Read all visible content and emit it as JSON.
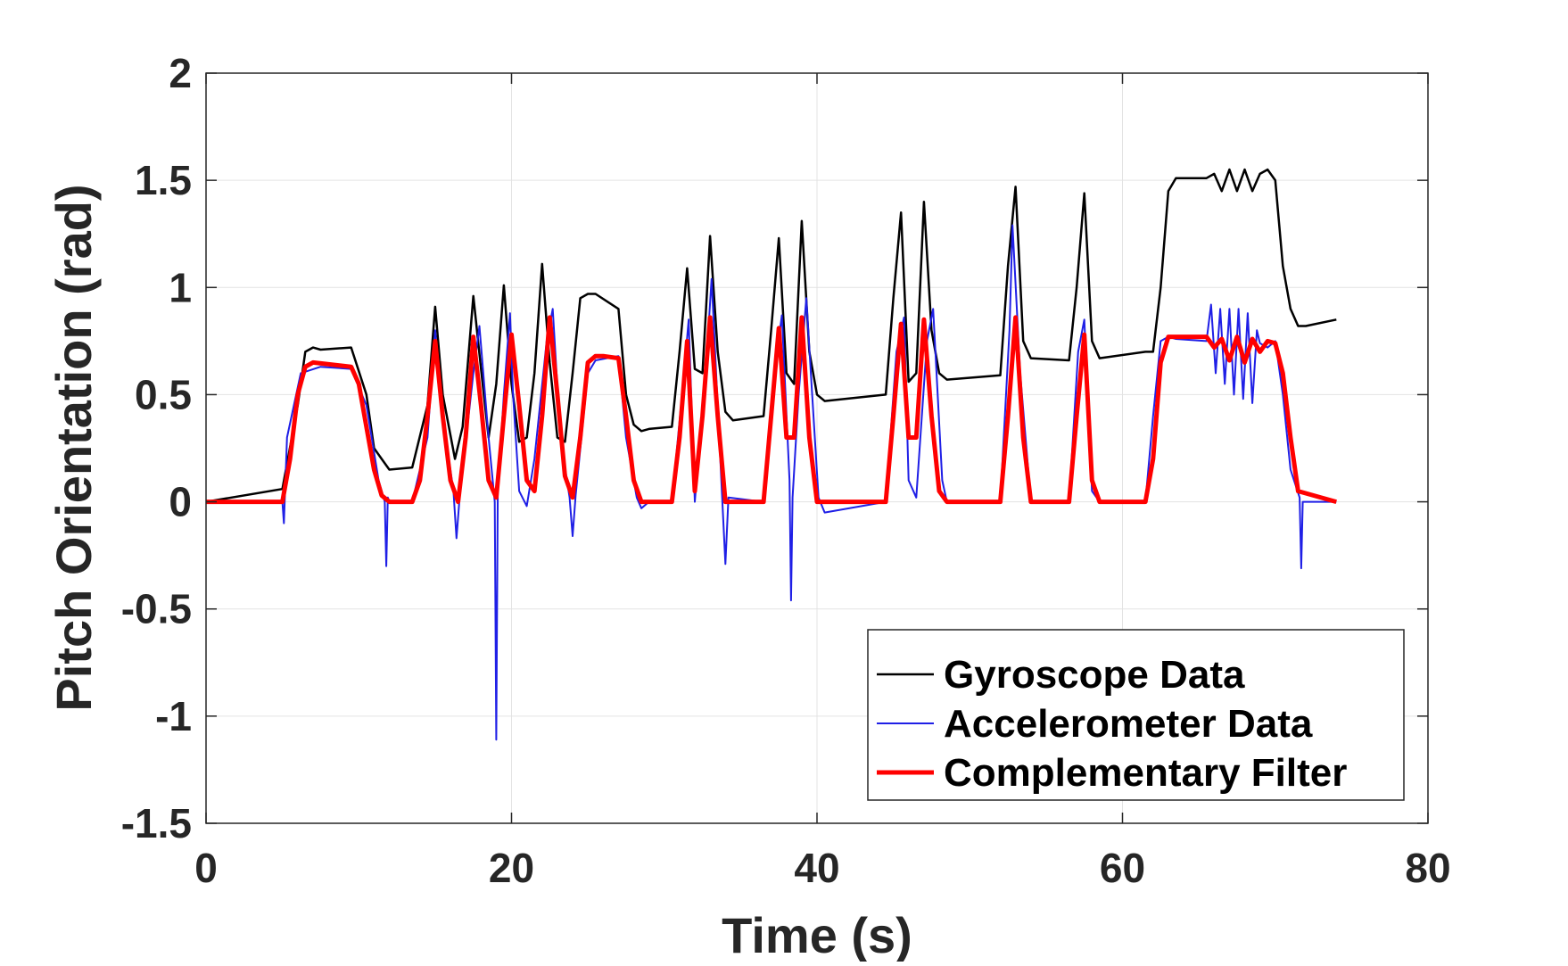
{
  "chart_data": {
    "type": "line",
    "title": "",
    "xlabel": "Time (s)",
    "ylabel": "Pitch Orientation (rad)",
    "xlim": [
      0,
      80
    ],
    "ylim": [
      -1.5,
      2
    ],
    "xticks": [
      0,
      20,
      40,
      60,
      80
    ],
    "xtick_labels": [
      "0",
      "20",
      "40",
      "60",
      "80"
    ],
    "yticks": [
      -1.5,
      -1,
      -0.5,
      0,
      0.5,
      1,
      1.5,
      2
    ],
    "ytick_labels": [
      "-1.5",
      "-1",
      "-0.5",
      "0",
      "0.5",
      "1",
      "1.5",
      "2"
    ],
    "grid": true,
    "legend_position": "bottom-right",
    "series": [
      {
        "name": "Gyroscope Data",
        "color": "#000000",
        "x": [
          0,
          5,
          6,
          6.5,
          7,
          7.5,
          9.5,
          10.5,
          11,
          11.5,
          12,
          13.5,
          14.5,
          15,
          15.5,
          16.3,
          16.8,
          17.5,
          18,
          18.5,
          19,
          19.5,
          20,
          20.5,
          21,
          21.5,
          22,
          22.5,
          23,
          23.5,
          24,
          24.5,
          25,
          25.5,
          27,
          27.5,
          28,
          28.5,
          29,
          30.5,
          31,
          31.5,
          32,
          32.5,
          33,
          33.5,
          34,
          34.5,
          36.5,
          37,
          37.5,
          38,
          38.5,
          39,
          39.5,
          40,
          40.5,
          44.5,
          45,
          45.5,
          46,
          46.5,
          47,
          47.5,
          48,
          48.5,
          52,
          52.5,
          53,
          53.5,
          54,
          56.5,
          57,
          57.5,
          58,
          58.5,
          61.5,
          62,
          62.5,
          63,
          63.5,
          65.5,
          66,
          66.5,
          67,
          67.5,
          68,
          68.5,
          69,
          69.5,
          70,
          70.5,
          71,
          71.5,
          72,
          74
        ],
        "y": [
          0,
          0.06,
          0.45,
          0.7,
          0.72,
          0.71,
          0.72,
          0.5,
          0.25,
          0.2,
          0.15,
          0.16,
          0.45,
          0.91,
          0.5,
          0.2,
          0.35,
          0.96,
          0.62,
          0.3,
          0.55,
          1.01,
          0.55,
          0.28,
          0.3,
          0.6,
          1.11,
          0.65,
          0.3,
          0.28,
          0.6,
          0.95,
          0.97,
          0.97,
          0.9,
          0.5,
          0.36,
          0.33,
          0.34,
          0.35,
          0.7,
          1.09,
          0.62,
          0.6,
          1.24,
          0.7,
          0.42,
          0.38,
          0.4,
          0.8,
          1.23,
          0.6,
          0.55,
          1.31,
          0.7,
          0.5,
          0.47,
          0.5,
          0.95,
          1.35,
          0.56,
          0.6,
          1.4,
          0.8,
          0.6,
          0.57,
          0.59,
          1.1,
          1.47,
          0.75,
          0.67,
          0.66,
          1.0,
          1.44,
          0.75,
          0.67,
          0.7,
          0.7,
          1.0,
          1.45,
          1.51,
          1.51,
          1.53,
          1.45,
          1.55,
          1.45,
          1.55,
          1.45,
          1.53,
          1.55,
          1.5,
          1.1,
          0.9,
          0.82,
          0.82,
          0.85
        ]
      },
      {
        "name": "Accelerometer Data",
        "color": "#1f1fe6",
        "x": [
          0,
          5,
          5.1,
          5.3,
          6.2,
          7.5,
          9.5,
          10.5,
          11.3,
          11.7,
          11.8,
          11.9,
          12,
          13.5,
          14.5,
          15,
          15.5,
          16.2,
          16.4,
          16.6,
          17.5,
          17.9,
          18.5,
          18.9,
          19.0,
          19.1,
          19.5,
          19.9,
          20.1,
          20.5,
          21,
          21.5,
          22.3,
          22.7,
          23.2,
          23.8,
          24.0,
          24.2,
          25,
          25.5,
          27,
          27.5,
          28.2,
          28.5,
          29,
          30.5,
          31.3,
          31.6,
          32,
          32.8,
          33.1,
          33.6,
          34.0,
          34.2,
          36.5,
          37.3,
          37.7,
          38.2,
          38.3,
          38.4,
          38.8,
          39.3,
          39.6,
          40.1,
          40.5,
          44.5,
          45.2,
          45.7,
          46,
          46.5,
          47.2,
          47.6,
          48.2,
          48.5,
          52,
          52.6,
          52.8,
          53.3,
          54,
          56.5,
          57.1,
          57.5,
          58,
          58.5,
          61.5,
          62,
          62.5,
          63,
          63.5,
          65.5,
          65.8,
          66.1,
          66.4,
          66.7,
          67,
          67.3,
          67.6,
          67.9,
          68.2,
          68.5,
          68.8,
          69,
          69.5,
          70,
          70.5,
          71,
          71.6,
          71.7,
          71.8,
          72,
          74
        ],
        "y": [
          0,
          0,
          -0.1,
          0.3,
          0.6,
          0.63,
          0.62,
          0.45,
          0.1,
          0.0,
          -0.3,
          0.02,
          0,
          0,
          0.3,
          0.8,
          0.4,
          0.05,
          -0.17,
          0.02,
          0.6,
          0.82,
          0.3,
          0.0,
          -1.11,
          0.05,
          0.5,
          0.88,
          0.5,
          0.05,
          -0.02,
          0.2,
          0.75,
          0.9,
          0.3,
          0.02,
          -0.16,
          0.03,
          0.6,
          0.66,
          0.68,
          0.3,
          0.02,
          -0.03,
          0.0,
          0,
          0.6,
          0.85,
          0.0,
          0.7,
          1.04,
          0.3,
          -0.29,
          0.02,
          0,
          0.65,
          0.87,
          0.1,
          -0.46,
          0.02,
          0.5,
          0.95,
          0.6,
          0.02,
          -0.05,
          0,
          0.7,
          0.86,
          0.1,
          0.02,
          0.75,
          0.9,
          0.1,
          0.0,
          0,
          0.8,
          1.29,
          0.6,
          0.0,
          0,
          0.7,
          0.85,
          0.05,
          0.0,
          0,
          0.4,
          0.75,
          0.77,
          0.76,
          0.75,
          0.92,
          0.6,
          0.9,
          0.55,
          0.9,
          0.5,
          0.9,
          0.48,
          0.88,
          0.46,
          0.8,
          0.74,
          0.72,
          0.75,
          0.5,
          0.15,
          0.02,
          -0.31,
          0.0,
          0,
          0
        ]
      },
      {
        "name": "Complementary Filter",
        "color": "#ff0000",
        "x": [
          0,
          5,
          5.5,
          6,
          6.5,
          7,
          9.5,
          10,
          10.5,
          11,
          11.5,
          12,
          13.5,
          14,
          14.5,
          15,
          15.5,
          16,
          16.5,
          17,
          17.5,
          18,
          18.5,
          19,
          19.5,
          20,
          20.5,
          21,
          21.5,
          22,
          22.5,
          23,
          23.5,
          24,
          24.5,
          25,
          25.5,
          26,
          27,
          27.5,
          28,
          28.5,
          30.5,
          31,
          31.5,
          32,
          32.5,
          33,
          33.5,
          34,
          36.5,
          37,
          37.5,
          38,
          38.5,
          39,
          39.5,
          40,
          40.5,
          44.5,
          45,
          45.5,
          46,
          46.5,
          47,
          47.5,
          48,
          48.5,
          52,
          52.5,
          53,
          53.5,
          54,
          56.5,
          57,
          57.5,
          58,
          58.5,
          61.5,
          62,
          62.5,
          63,
          65.5,
          66,
          66.5,
          67,
          67.5,
          68,
          68.5,
          69,
          69.5,
          70,
          70.5,
          71,
          71.5,
          74
        ],
        "y": [
          0,
          0,
          0.2,
          0.5,
          0.63,
          0.65,
          0.63,
          0.55,
          0.35,
          0.15,
          0.03,
          0,
          0,
          0.1,
          0.4,
          0.75,
          0.4,
          0.1,
          0.0,
          0.3,
          0.77,
          0.45,
          0.1,
          0.02,
          0.4,
          0.78,
          0.45,
          0.1,
          0.05,
          0.4,
          0.86,
          0.5,
          0.12,
          0.02,
          0.3,
          0.65,
          0.68,
          0.68,
          0.67,
          0.4,
          0.1,
          0.0,
          0,
          0.3,
          0.75,
          0.05,
          0.4,
          0.86,
          0.4,
          0.0,
          0,
          0.4,
          0.81,
          0.3,
          0.3,
          0.86,
          0.3,
          0.0,
          0,
          0,
          0.4,
          0.83,
          0.3,
          0.3,
          0.85,
          0.4,
          0.05,
          0.0,
          0,
          0.4,
          0.86,
          0.3,
          0.0,
          0,
          0.4,
          0.78,
          0.1,
          0.0,
          0,
          0.2,
          0.65,
          0.77,
          0.77,
          0.72,
          0.76,
          0.66,
          0.77,
          0.65,
          0.76,
          0.7,
          0.75,
          0.74,
          0.6,
          0.3,
          0.05,
          0
        ]
      }
    ]
  }
}
